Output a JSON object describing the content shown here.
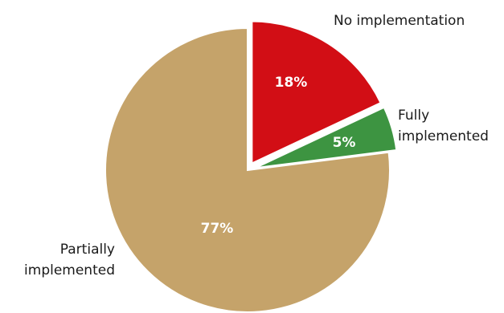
{
  "chart_data": {
    "type": "pie",
    "slices": [
      {
        "label_lines": [
          "No implementation"
        ],
        "value": 18,
        "value_label": "18%",
        "color": "#d20e15",
        "exploded": true
      },
      {
        "label_lines": [
          "Fully",
          "implemented"
        ],
        "value": 5,
        "value_label": "5%",
        "color": "#3d9441",
        "exploded": true
      },
      {
        "label_lines": [
          "Partially",
          "implemented"
        ],
        "value": 77,
        "value_label": "77%",
        "color": "#c5a36a",
        "exploded": false
      }
    ],
    "start_angle_deg": 0,
    "direction": "clockwise",
    "legend": "labels outside slices"
  }
}
